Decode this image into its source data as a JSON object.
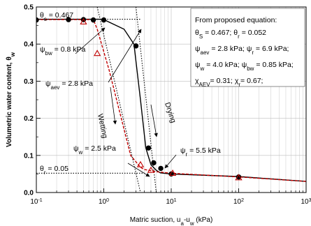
{
  "chart_data": {
    "type": "scatter",
    "xlabel": "Matric suction, uₐ-uᵥ (kPa)",
    "xlabel_parts": {
      "prefix": "Matric suction, u",
      "sub_a": "a",
      "mid": "-u",
      "sub_w": "w",
      "suffix": " (kPa)"
    },
    "ylabel": "Volumetric water content, θw",
    "ylabel_parts": {
      "main": "Volumetric water content, θ",
      "sub": "w"
    },
    "xscale": "log",
    "xlim": [
      0.1,
      1000
    ],
    "ylim": [
      0.0,
      0.5
    ],
    "x_ticks": [
      {
        "value": 0.1,
        "base": "10",
        "exp": "-1"
      },
      {
        "value": 1,
        "base": "10",
        "exp": "0"
      },
      {
        "value": 10,
        "base": "10",
        "exp": "1"
      },
      {
        "value": 100,
        "base": "10",
        "exp": "2"
      },
      {
        "value": 1000,
        "base": "10",
        "exp": "3"
      }
    ],
    "y_ticks": [
      {
        "value": 0.0,
        "label": "0.0"
      },
      {
        "value": 0.1,
        "label": "0.1"
      },
      {
        "value": 0.2,
        "label": "0.2"
      },
      {
        "value": 0.3,
        "label": "0.3"
      },
      {
        "value": 0.4,
        "label": "0.4"
      },
      {
        "value": 0.5,
        "label": "0.5"
      }
    ],
    "grid": true,
    "series": [
      {
        "role": "drying-data",
        "color": "#000000",
        "marker": "circle",
        "points": [
          [
            0.1,
            0.465
          ],
          [
            0.3,
            0.466
          ],
          [
            0.5,
            0.466
          ],
          [
            0.7,
            0.465
          ],
          [
            1.0,
            0.465
          ],
          [
            3.0,
            0.395
          ],
          [
            4.6,
            0.12
          ],
          [
            5.5,
            0.08
          ],
          [
            7.0,
            0.065
          ],
          [
            10,
            0.05
          ],
          [
            100,
            0.042
          ]
        ]
      },
      {
        "role": "wetting-data",
        "color": "#c00000",
        "marker": "triangle-open",
        "points": [
          [
            0.5,
            0.46
          ],
          [
            0.8,
            0.375
          ],
          [
            3.5,
            0.075
          ],
          [
            5.0,
            0.06
          ],
          [
            10.5,
            0.052
          ],
          [
            100,
            0.04
          ]
        ]
      },
      {
        "role": "drying-curve",
        "color": "#000000",
        "style": "solid",
        "points": [
          [
            0.1,
            0.467
          ],
          [
            0.9,
            0.467
          ],
          [
            1.0,
            0.466
          ],
          [
            2.0,
            0.44
          ],
          [
            2.8,
            0.4
          ],
          [
            3.5,
            0.25
          ],
          [
            4.2,
            0.12
          ],
          [
            5.0,
            0.075
          ],
          [
            6.0,
            0.06
          ],
          [
            6.9,
            0.053
          ],
          [
            10,
            0.05
          ],
          [
            100,
            0.043
          ],
          [
            1000,
            0.03
          ]
        ]
      },
      {
        "role": "wetting-curve",
        "color": "#c00000",
        "style": "dashed",
        "points": [
          [
            0.1,
            0.466
          ],
          [
            0.7,
            0.466
          ],
          [
            0.8,
            0.44
          ],
          [
            1.2,
            0.33
          ],
          [
            2.0,
            0.17
          ],
          [
            2.5,
            0.1
          ],
          [
            3.5,
            0.068
          ],
          [
            4.0,
            0.062
          ],
          [
            6.0,
            0.056
          ],
          [
            10,
            0.052
          ],
          [
            100,
            0.042
          ],
          [
            1000,
            0.03
          ]
        ]
      },
      {
        "role": "guide-lines",
        "color": "#000000",
        "style": "dotted",
        "lines": [
          [
            [
              0.1,
              0.467
            ],
            [
              3.5,
              0.467
            ]
          ],
          [
            [
              0.1,
              0.052
            ],
            [
              4.0,
              0.052
            ]
          ],
          [
            [
              0.8,
              0.5
            ],
            [
              3.5,
              0.0
            ]
          ],
          [
            [
              3.0,
              0.5
            ],
            [
              6.0,
              0.0
            ]
          ]
        ]
      }
    ],
    "annotations": [
      {
        "id": "theta-s",
        "parts": [
          {
            "t": "θ"
          },
          {
            "t": "s",
            "sub": true
          },
          {
            "t": " = 0.467"
          }
        ]
      },
      {
        "id": "theta-r",
        "parts": [
          {
            "t": "θ"
          },
          {
            "t": "r",
            "sub": true
          },
          {
            "t": " = 0.05"
          }
        ]
      },
      {
        "id": "psi-bw",
        "parts": [
          {
            "t": "ψ"
          },
          {
            "t": "bw",
            "sub": true
          },
          {
            "t": " = 0.8 kPa"
          }
        ]
      },
      {
        "id": "psi-aev",
        "parts": [
          {
            "t": "ψ"
          },
          {
            "t": "aev",
            "sub": true
          },
          {
            "t": " = 2.8 kPa"
          }
        ]
      },
      {
        "id": "psi-w",
        "parts": [
          {
            "t": "ψ"
          },
          {
            "t": "w",
            "sub": true
          },
          {
            "t": " = 2.5 kPa"
          }
        ]
      },
      {
        "id": "psi-r",
        "parts": [
          {
            "t": "ψ"
          },
          {
            "t": "r",
            "sub": true
          },
          {
            "t": " = 5.5 kPa"
          }
        ]
      },
      {
        "id": "wetting-label",
        "parts": [
          {
            "t": "Wetting"
          }
        ]
      },
      {
        "id": "drying-label",
        "parts": [
          {
            "t": "Drying"
          }
        ]
      }
    ],
    "legend_box": {
      "placement": "top-right",
      "lines": [
        [
          {
            "t": "From proposed equation:"
          }
        ],
        [
          {
            "t": "θ"
          },
          {
            "t": "S",
            "sub": true
          },
          {
            "t": " = 0.467; θ"
          },
          {
            "t": "r",
            "sub": true
          },
          {
            "t": " = 0.052"
          }
        ],
        [
          {
            "t": "ψ"
          },
          {
            "t": "aev",
            "sub": true
          },
          {
            "t": " = 2.8 kPa; ψ"
          },
          {
            "t": "r",
            "sub": true
          },
          {
            "t": " = 6.9 kPa;"
          }
        ],
        [
          {
            "t": "ψ"
          },
          {
            "t": "w",
            "sub": true
          },
          {
            "t": " = 4.0 kPa; ψ"
          },
          {
            "t": "bw",
            "sub": true
          },
          {
            "t": " = 0.85 kPa;"
          }
        ],
        [
          {
            "t": "χ"
          },
          {
            "t": "AEV",
            "sub": true
          },
          {
            "t": "= 0.31; χ"
          },
          {
            "t": "r",
            "sub": true
          },
          {
            "t": "= 0.67;"
          }
        ]
      ]
    }
  }
}
